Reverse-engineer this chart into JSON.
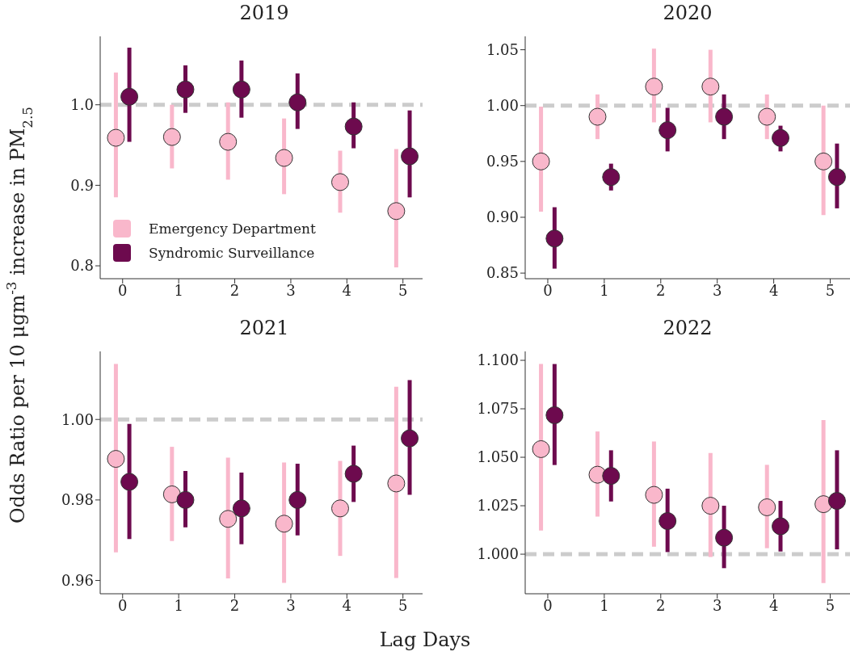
{
  "chart_data": [
    {
      "type": "scatter",
      "title": "2019",
      "xlabel": "Lag Days",
      "ylabel": "Odds Ratio per 10 μgm$^{-3}$ increase in PM$_{2.5}$",
      "xlim": [
        -0.4,
        5.35
      ],
      "xticks": [
        0,
        1,
        2,
        3,
        4,
        5
      ],
      "ylim": [
        0.784,
        1.085
      ],
      "yticks": [
        {
          "value": 0.8,
          "label": "0.8"
        },
        {
          "value": 0.9,
          "label": "0.9"
        },
        {
          "value": 1.0,
          "label": "1.0"
        }
      ],
      "marker": "circle",
      "legend": "bottom left",
      "ref_lines": [
        {
          "axis": "y",
          "value": 1.0,
          "color": "#cccccc",
          "line_style": "dashed"
        }
      ],
      "series": [
        {
          "name": "Emergency Department",
          "color": "#f9b7cb",
          "x": [
            -0.12,
            0.88,
            1.88,
            2.88,
            3.88,
            4.88
          ],
          "values": [
            0.959,
            0.96,
            0.954,
            0.934,
            0.904,
            0.868
          ],
          "errors": [
            [
              0.885,
              1.04
            ],
            [
              0.921,
              1.0
            ],
            [
              0.907,
              1.003
            ],
            [
              0.889,
              0.983
            ],
            [
              0.866,
              0.943
            ],
            [
              0.798,
              0.945
            ]
          ]
        },
        {
          "name": "Syndromic Surveillance",
          "color": "#6d0a4e",
          "x": [
            0.12,
            1.12,
            2.12,
            3.12,
            4.12,
            5.12
          ],
          "values": [
            1.01,
            1.019,
            1.019,
            1.003,
            0.973,
            0.936
          ],
          "errors": [
            [
              0.954,
              1.071
            ],
            [
              0.99,
              1.049
            ],
            [
              0.984,
              1.055
            ],
            [
              0.97,
              1.039
            ],
            [
              0.946,
              1.003
            ],
            [
              0.885,
              0.993
            ]
          ]
        }
      ]
    },
    {
      "type": "scatter",
      "title": "2020",
      "xlim": [
        -0.4,
        5.35
      ],
      "xticks": [
        0,
        1,
        2,
        3,
        4,
        5
      ],
      "ylim": [
        0.845,
        1.062
      ],
      "yticks": [
        {
          "value": 0.85,
          "label": "0.85"
        },
        {
          "value": 0.9,
          "label": "0.90"
        },
        {
          "value": 0.95,
          "label": "0.95"
        },
        {
          "value": 1.0,
          "label": "1.00"
        },
        {
          "value": 1.05,
          "label": "1.05"
        }
      ],
      "marker": "circle",
      "ref_lines": [
        {
          "axis": "y",
          "value": 1.0,
          "color": "#cccccc",
          "line_style": "dashed"
        }
      ],
      "series": [
        {
          "color": "#f9b7cb",
          "x": [
            -0.12,
            0.88,
            1.88,
            2.88,
            3.88,
            4.88
          ],
          "values": [
            0.95,
            0.99,
            1.017,
            1.017,
            0.99,
            0.95
          ],
          "errors": [
            [
              0.905,
              0.999
            ],
            [
              0.97,
              1.01
            ],
            [
              0.985,
              1.051
            ],
            [
              0.985,
              1.05
            ],
            [
              0.97,
              1.01
            ],
            [
              0.902,
              1.0
            ]
          ]
        },
        {
          "color": "#6d0a4e",
          "x": [
            0.12,
            1.12,
            2.12,
            3.12,
            4.12,
            5.12
          ],
          "values": [
            0.881,
            0.936,
            0.978,
            0.99,
            0.971,
            0.936
          ],
          "errors": [
            [
              0.854,
              0.909
            ],
            [
              0.924,
              0.948
            ],
            [
              0.959,
              0.998
            ],
            [
              0.97,
              1.01
            ],
            [
              0.959,
              0.982
            ],
            [
              0.908,
              0.966
            ]
          ]
        }
      ]
    },
    {
      "type": "scatter",
      "title": "2021",
      "xlim": [
        -0.4,
        5.35
      ],
      "xticks": [
        0,
        1,
        2,
        3,
        4,
        5
      ],
      "ylim": [
        0.9567,
        1.0169
      ],
      "yticks": [
        {
          "value": 0.96,
          "label": "0.96"
        },
        {
          "value": 0.98,
          "label": "0.98"
        },
        {
          "value": 1.0,
          "label": "1.00"
        }
      ],
      "marker": "circle",
      "ref_lines": [
        {
          "axis": "y",
          "value": 1.0,
          "color": "#cccccc",
          "line_style": "dashed"
        }
      ],
      "series": [
        {
          "color": "#f9b7cb",
          "x": [
            -0.12,
            0.88,
            1.88,
            2.88,
            3.88,
            4.88
          ],
          "values": [
            0.9902,
            0.9814,
            0.9753,
            0.9741,
            0.9779,
            0.9841
          ],
          "errors": [
            [
              0.967,
              1.0138
            ],
            [
              0.9698,
              0.9932
            ],
            [
              0.9605,
              0.9905
            ],
            [
              0.9594,
              0.9893
            ],
            [
              0.9661,
              0.9897
            ],
            [
              0.9606,
              1.0081
            ]
          ]
        },
        {
          "color": "#6d0a4e",
          "x": [
            0.12,
            1.12,
            2.12,
            3.12,
            4.12,
            5.12
          ],
          "values": [
            0.9845,
            0.98,
            0.9779,
            0.98,
            0.9865,
            0.9953
          ],
          "errors": [
            [
              0.9703,
              0.9989
            ],
            [
              0.9732,
              0.9872
            ],
            [
              0.969,
              0.9868
            ],
            [
              0.9712,
              0.989
            ],
            [
              0.9795,
              0.9935
            ],
            [
              0.9813,
              1.0098
            ]
          ]
        }
      ]
    },
    {
      "type": "scatter",
      "title": "2022",
      "xlim": [
        -0.4,
        5.35
      ],
      "xticks": [
        0,
        1,
        2,
        3,
        4,
        5
      ],
      "ylim": [
        0.9796,
        1.1046
      ],
      "yticks": [
        {
          "value": 1.0,
          "label": "1.000"
        },
        {
          "value": 1.025,
          "label": "1.025"
        },
        {
          "value": 1.05,
          "label": "1.050"
        },
        {
          "value": 1.075,
          "label": "1.075"
        },
        {
          "value": 1.1,
          "label": "1.100"
        }
      ],
      "marker": "circle",
      "ref_lines": [
        {
          "axis": "y",
          "value": 1.0,
          "color": "#cccccc",
          "line_style": "dashed"
        }
      ],
      "series": [
        {
          "color": "#f9b7cb",
          "x": [
            -0.12,
            0.88,
            1.88,
            2.88,
            3.88,
            4.88
          ],
          "values": [
            1.0542,
            1.041,
            1.0306,
            1.025,
            1.0242,
            1.0258
          ],
          "errors": [
            [
              1.0122,
              1.0981
            ],
            [
              1.0194,
              1.0633
            ],
            [
              1.0039,
              1.0581
            ],
            [
              0.9986,
              1.0522
            ],
            [
              1.0031,
              1.0461
            ],
            [
              0.9851,
              1.0692
            ]
          ]
        },
        {
          "color": "#6d0a4e",
          "x": [
            0.12,
            1.12,
            2.12,
            3.12,
            4.12,
            5.12
          ],
          "values": [
            1.0717,
            1.0404,
            1.0171,
            1.0085,
            1.0144,
            1.0275
          ],
          "errors": [
            [
              1.046,
              1.0981
            ],
            [
              1.0272,
              1.0536
            ],
            [
              1.0011,
              1.0338
            ],
            [
              0.9928,
              1.025
            ],
            [
              1.0014,
              1.0275
            ],
            [
              1.0025,
              1.0536
            ]
          ]
        }
      ]
    }
  ]
}
